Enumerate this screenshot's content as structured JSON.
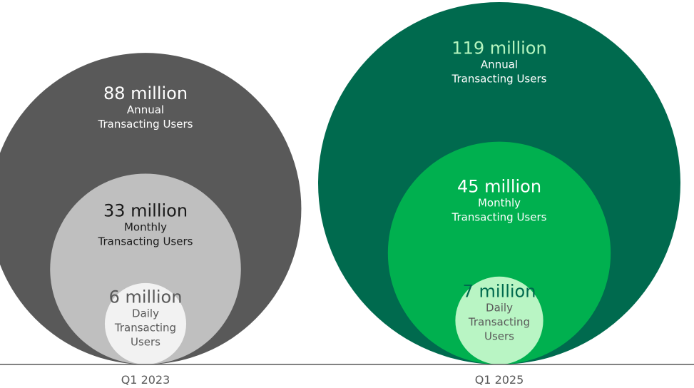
{
  "chart_data": {
    "type": "nested-bubble",
    "groups": [
      {
        "category": "Q1 2023",
        "bubbles": [
          {
            "metric": "Annual",
            "value": 88,
            "value_text": "88 million",
            "label_lines": [
              "Annual",
              "Transacting Users"
            ],
            "fill": "#595959",
            "value_color": "#ffffff",
            "label_color": "#ffffff"
          },
          {
            "metric": "Monthly",
            "value": 33,
            "value_text": "33 million",
            "label_lines": [
              "Monthly",
              "Transacting Users"
            ],
            "fill": "#bfbfbf",
            "value_color": "#1a1a1a",
            "label_color": "#1a1a1a"
          },
          {
            "metric": "Daily",
            "value": 6,
            "value_text": "6 million",
            "label_lines": [
              "Daily",
              "Transacting",
              "Users"
            ],
            "fill": "#f2f2f2",
            "value_color": "#595959",
            "label_color": "#595959"
          }
        ]
      },
      {
        "category": "Q1 2025",
        "bubbles": [
          {
            "metric": "Annual",
            "value": 119,
            "value_text": "119 million",
            "label_lines": [
              "Annual",
              "Transacting Users"
            ],
            "fill": "#006a4e",
            "value_color": "#b5f5bf",
            "label_color": "#ffffff"
          },
          {
            "metric": "Monthly",
            "value": 45,
            "value_text": "45 million",
            "label_lines": [
              "Monthly",
              "Transacting Users"
            ],
            "fill": "#00b04f",
            "value_color": "#ffffff",
            "label_color": "#ffffff"
          },
          {
            "metric": "Daily",
            "value": 7,
            "value_text": "7 million",
            "label_lines": [
              "Daily",
              "Transacting",
              "Users"
            ],
            "fill": "#b9f5c4",
            "value_color": "#006a4e",
            "label_color": "#595959"
          }
        ]
      }
    ],
    "baseline_color": "#595959",
    "category_label_color": "#595959"
  }
}
